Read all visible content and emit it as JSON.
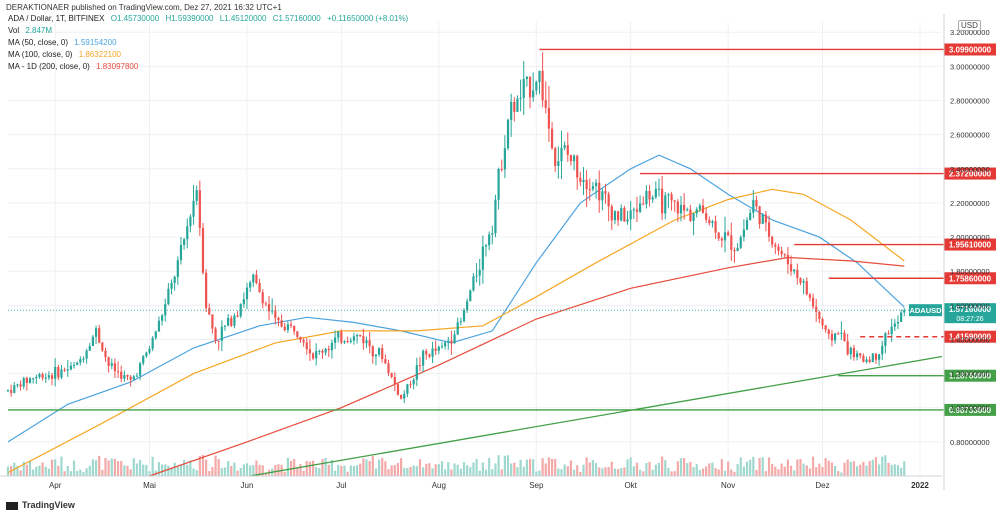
{
  "header": {
    "attribution": "DERAKTIONAER published on TradingView.com, Dez 27, 2021 16:32 UTC+1"
  },
  "legend": {
    "symbol_line": {
      "name": "ADA / Dollar, 1T, BITFINEX",
      "open": "O1.45730000",
      "high": "H1.59390000",
      "low": "L1.45120000",
      "close": "C1.57160000",
      "change": "+0.11650000 (+8.01%)"
    },
    "volume": {
      "label": "Vol",
      "value": "2.847M"
    },
    "ma50": {
      "label": "MA (50, close, 0)",
      "value": "1.59154200"
    },
    "ma100": {
      "label": "MA (100, close, 0)",
      "value": "1.86322100"
    },
    "ma200": {
      "label": "MA - 1D (200, close, 0)",
      "value": "1.83097800"
    }
  },
  "currency_badge": "USD",
  "logo_text": "TradingView",
  "colors": {
    "up": "#26a69a",
    "down": "#ef5350",
    "ma50": "#4aa3df",
    "ma100": "#f5a623",
    "ma200": "#e74c3c",
    "resistance": "#e53935",
    "support": "#43a047",
    "grid": "#eef0f3",
    "axis_text": "#333333",
    "volume_up": "#9fd8cf",
    "volume_down": "#f3a9a8"
  },
  "chart_data": {
    "type": "candlestick",
    "symbol": "ADAUSD",
    "exchange": "BITFINEX",
    "interval": "1D",
    "x_labels": [
      "Apr",
      "Mai",
      "Jun",
      "Jul",
      "Aug",
      "Sep",
      "Okt",
      "Nov",
      "Dez",
      "2022"
    ],
    "y_ticks": [
      "3.20000000",
      "3.00000000",
      "2.80000000",
      "2.60000000",
      "2.40000000",
      "2.20000000",
      "2.00000000",
      "1.80000000",
      "1.60000000",
      "1.40000000",
      "1.20000000",
      "1.00000000",
      "0.80000000"
    ],
    "ylim": [
      0.6,
      3.26
    ],
    "date_range": [
      "2021-03-17",
      "2022-01-08"
    ],
    "close_path": [
      [
        "2021-03-17",
        1.1
      ],
      [
        "2021-03-25",
        1.18
      ],
      [
        "2021-04-01",
        1.2
      ],
      [
        "2021-04-08",
        1.25
      ],
      [
        "2021-04-14",
        1.45
      ],
      [
        "2021-04-18",
        1.25
      ],
      [
        "2021-04-25",
        1.15
      ],
      [
        "2021-05-01",
        1.35
      ],
      [
        "2021-05-06",
        1.6
      ],
      [
        "2021-05-11",
        1.9
      ],
      [
        "2021-05-16",
        2.3
      ],
      [
        "2021-05-19",
        1.6
      ],
      [
        "2021-05-22",
        1.4
      ],
      [
        "2021-05-28",
        1.55
      ],
      [
        "2021-06-03",
        1.75
      ],
      [
        "2021-06-10",
        1.5
      ],
      [
        "2021-06-18",
        1.45
      ],
      [
        "2021-06-22",
        1.3
      ],
      [
        "2021-06-30",
        1.4
      ],
      [
        "2021-07-07",
        1.42
      ],
      [
        "2021-07-14",
        1.3
      ],
      [
        "2021-07-20",
        1.05
      ],
      [
        "2021-07-27",
        1.3
      ],
      [
        "2021-08-02",
        1.35
      ],
      [
        "2021-08-08",
        1.5
      ],
      [
        "2021-08-13",
        1.8
      ],
      [
        "2021-08-18",
        2.1
      ],
      [
        "2021-08-23",
        2.7
      ],
      [
        "2021-08-28",
        2.85
      ],
      [
        "2021-09-02",
        2.95
      ],
      [
        "2021-09-07",
        2.45
      ],
      [
        "2021-09-10",
        2.5
      ],
      [
        "2021-09-14",
        2.4
      ],
      [
        "2021-09-20",
        2.3
      ],
      [
        "2021-09-25",
        2.15
      ],
      [
        "2021-09-30",
        2.1
      ],
      [
        "2021-10-06",
        2.25
      ],
      [
        "2021-10-12",
        2.2
      ],
      [
        "2021-10-18",
        2.15
      ],
      [
        "2021-10-24",
        2.15
      ],
      [
        "2021-10-30",
        2.0
      ],
      [
        "2021-11-04",
        1.95
      ],
      [
        "2021-11-09",
        2.2
      ],
      [
        "2021-11-13",
        2.05
      ],
      [
        "2021-11-18",
        1.9
      ],
      [
        "2021-11-24",
        1.75
      ],
      [
        "2021-11-28",
        1.6
      ],
      [
        "2021-12-03",
        1.4
      ],
      [
        "2021-12-06",
        1.45
      ],
      [
        "2021-12-10",
        1.32
      ],
      [
        "2021-12-14",
        1.28
      ],
      [
        "2021-12-18",
        1.3
      ],
      [
        "2021-12-22",
        1.45
      ],
      [
        "2021-12-25",
        1.5
      ],
      [
        "2021-12-27",
        1.5716
      ]
    ],
    "ma50_path": [
      [
        "2021-03-17",
        0.8
      ],
      [
        "2021-04-05",
        1.02
      ],
      [
        "2021-04-25",
        1.15
      ],
      [
        "2021-05-15",
        1.35
      ],
      [
        "2021-06-05",
        1.48
      ],
      [
        "2021-06-20",
        1.53
      ],
      [
        "2021-07-05",
        1.5
      ],
      [
        "2021-07-20",
        1.45
      ],
      [
        "2021-08-05",
        1.38
      ],
      [
        "2021-08-18",
        1.45
      ],
      [
        "2021-09-01",
        1.85
      ],
      [
        "2021-09-15",
        2.2
      ],
      [
        "2021-10-01",
        2.4
      ],
      [
        "2021-10-10",
        2.48
      ],
      [
        "2021-10-20",
        2.4
      ],
      [
        "2021-11-01",
        2.25
      ],
      [
        "2021-11-15",
        2.1
      ],
      [
        "2021-11-30",
        2.0
      ],
      [
        "2021-12-12",
        1.85
      ],
      [
        "2021-12-27",
        1.59
      ]
    ],
    "ma100_path": [
      [
        "2021-03-17",
        0.62
      ],
      [
        "2021-04-15",
        0.9
      ],
      [
        "2021-05-15",
        1.2
      ],
      [
        "2021-06-10",
        1.38
      ],
      [
        "2021-07-01",
        1.45
      ],
      [
        "2021-07-25",
        1.45
      ],
      [
        "2021-08-15",
        1.48
      ],
      [
        "2021-09-01",
        1.65
      ],
      [
        "2021-09-20",
        1.85
      ],
      [
        "2021-10-15",
        2.1
      ],
      [
        "2021-11-01",
        2.22
      ],
      [
        "2021-11-15",
        2.28
      ],
      [
        "2021-11-25",
        2.25
      ],
      [
        "2021-12-10",
        2.1
      ],
      [
        "2021-12-27",
        1.86
      ]
    ],
    "ma200_path": [
      [
        "2021-05-01",
        0.6
      ],
      [
        "2021-06-01",
        0.8
      ],
      [
        "2021-07-01",
        1.0
      ],
      [
        "2021-08-01",
        1.25
      ],
      [
        "2021-09-01",
        1.52
      ],
      [
        "2021-10-01",
        1.7
      ],
      [
        "2021-11-01",
        1.82
      ],
      [
        "2021-11-20",
        1.88
      ],
      [
        "2021-12-10",
        1.86
      ],
      [
        "2021-12-27",
        1.83
      ]
    ],
    "annotations": [
      {
        "kind": "resistance",
        "value": 3.099,
        "label": "3.09900000",
        "from": "2021-09-02"
      },
      {
        "kind": "resistance",
        "value": 2.372,
        "label": "2.37200000",
        "from": "2021-10-04"
      },
      {
        "kind": "resistance",
        "value": 1.9561,
        "label": "1.95610000",
        "from": "2021-11-22"
      },
      {
        "kind": "resistance",
        "value": 1.7586,
        "label": "1.75860000",
        "from": "2021-12-03"
      },
      {
        "kind": "resistance_dashed",
        "value": 1.4159,
        "label": "1.41590000",
        "from": "2021-12-13"
      },
      {
        "kind": "support",
        "value": 1.1876,
        "label": "1.18760000",
        "from": "2021-12-06"
      },
      {
        "kind": "support",
        "value": 0.98733,
        "label": "0.98733000",
        "from": "2021-03-17"
      }
    ],
    "trendline": [
      [
        "2021-06-02",
        0.6
      ],
      [
        "2022-01-08",
        1.3
      ]
    ],
    "current_price": {
      "symbol": "ADAUSD",
      "value": "1.57160000",
      "countdown": "08:27:26"
    }
  }
}
